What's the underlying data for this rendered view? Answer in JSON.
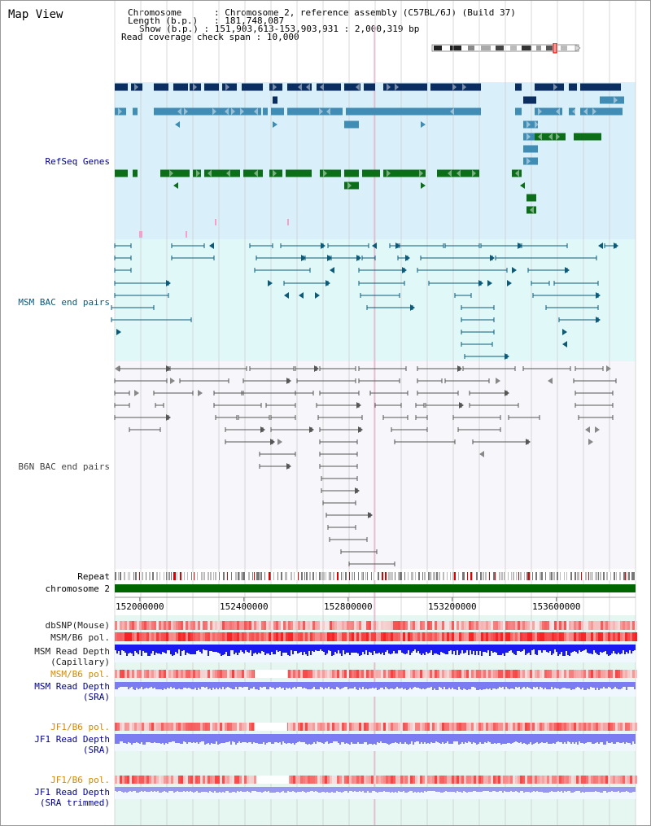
{
  "app": {
    "title": "Map View"
  },
  "info": {
    "chromosome_label": "Chromosome",
    "chromosome_value": "Chromosome 2, reference assembly (C57BL/6J) (Build 37)",
    "length_label": "Length (b.p.)",
    "length_value": "181,748,087",
    "show_label": "Show (b.p.)",
    "show_value": "151,903,613-153,903,931 : 2,000,319 bp",
    "coverage_label": "Read coverage check span",
    "coverage_value": "10,000"
  },
  "tracks": {
    "refseq": "RefSeq Genes",
    "msm_bac": "MSM BAC end pairs",
    "b6n_bac": "B6N BAC end pairs",
    "repeat": "Repeat",
    "chromosome": "chromosome 2",
    "dbsnp": "dbSNP(Mouse)",
    "msm_b6_pol_1": "MSM/B6 pol.",
    "msm_read_depth_cap": "MSM Read Depth",
    "msm_read_depth_cap_sub": "(Capillary)",
    "msm_b6_pol_2": "MSM/B6 pol.",
    "msm_read_depth_sra": "MSM Read Depth",
    "msm_read_depth_sra_sub": "(SRA)",
    "jf1_b6_pol_1": "JF1/B6 pol.",
    "jf1_read_depth_sra": "JF1 Read Depth",
    "jf1_read_depth_sra_sub": "(SRA)",
    "jf1_b6_pol_2": "JF1/B6 pol.",
    "jf1_read_depth_trim": "JF1 Read Depth",
    "jf1_read_depth_trim_sub": "(SRA trimmed)"
  },
  "axis": {
    "ticks": [
      "152000000",
      "152400000",
      "152800000",
      "153200000",
      "153600000"
    ],
    "range": [
      151903613,
      153903931
    ]
  },
  "colors": {
    "refseq_bg": "#d9f0fb",
    "msm_bg": "#e0f8f8",
    "b6n_bg": "#f6f6fb",
    "refseq_dark": "#0b2e62",
    "refseq_mid": "#3f8cb5",
    "refseq_green": "#0d6e1a",
    "msm_line": "#0c5a78",
    "b6n_line": "#555555",
    "chromosome_bar": "#006600",
    "depth_dark": "#1a1af0",
    "depth_light": "#7b7bf2",
    "pol_red": "#ee2222",
    "label_orange": "#d48a00",
    "label_navy": "#000090"
  }
}
